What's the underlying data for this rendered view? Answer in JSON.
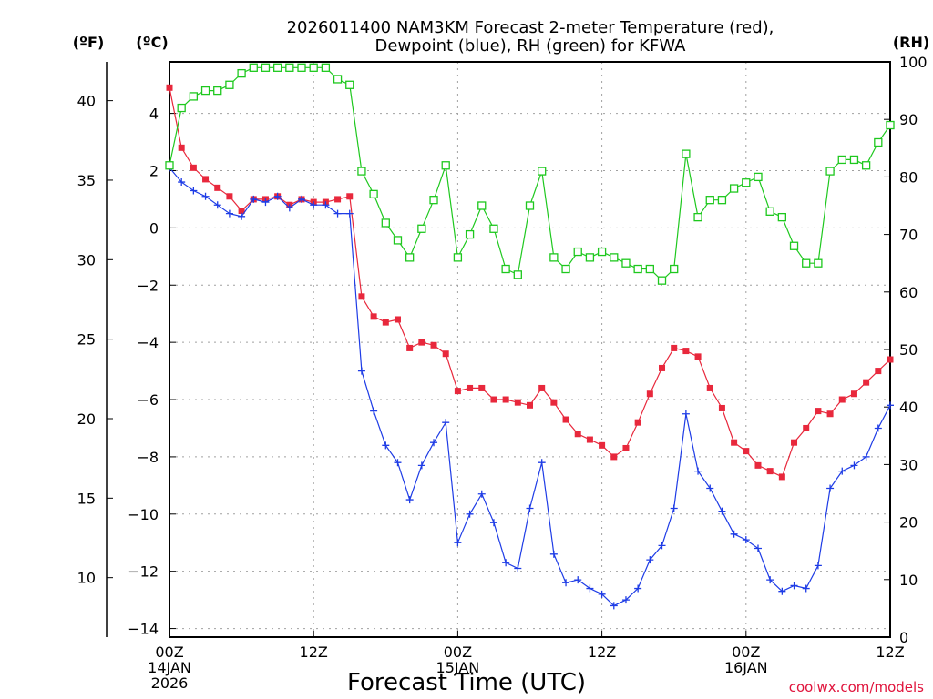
{
  "chart_data": {
    "type": "line",
    "title_line1": "2026011400 NAM3KM Forecast 2-meter Temperature (red),",
    "title_line2": "Dewpoint (blue), RH (green) for KFWA",
    "unit_left_f": "(ºF)",
    "unit_left_c": "(ºC)",
    "unit_right": "(RH)",
    "xlabel": "Forecast Time (UTC)",
    "credit": "coolwx.com/models",
    "x_hours": [
      0,
      1,
      2,
      3,
      4,
      5,
      6,
      7,
      8,
      9,
      10,
      11,
      12,
      13,
      14,
      15,
      16,
      17,
      18,
      19,
      20,
      21,
      22,
      23,
      24,
      25,
      26,
      27,
      28,
      29,
      30,
      31,
      32,
      33,
      34,
      35,
      36,
      37,
      38,
      39,
      40,
      41,
      42,
      43,
      44,
      45,
      46,
      47,
      48,
      49,
      50,
      51,
      52,
      53,
      54,
      55,
      56,
      57,
      58,
      59,
      60
    ],
    "xlim": [
      0,
      60
    ],
    "x_ticks": [
      {
        "hour": 0,
        "lines": [
          "00Z",
          "14JAN",
          "2026"
        ]
      },
      {
        "hour": 12,
        "lines": [
          "12Z"
        ]
      },
      {
        "hour": 24,
        "lines": [
          "00Z",
          "15JAN"
        ]
      },
      {
        "hour": 36,
        "lines": [
          "12Z"
        ]
      },
      {
        "hour": 48,
        "lines": [
          "00Z",
          "16JAN"
        ]
      },
      {
        "hour": 60,
        "lines": [
          "12Z"
        ]
      }
    ],
    "axis_c": {
      "label": "°C",
      "ylim": [
        -14.3,
        5.8
      ],
      "ticks": [
        4,
        2,
        0,
        -2,
        -4,
        -6,
        -8,
        -10,
        -12,
        -14
      ],
      "tick_labels": [
        "4",
        "2",
        "0",
        "−2",
        "−4",
        "−6",
        "−8",
        "−10",
        "−12",
        "−14"
      ]
    },
    "axis_f": {
      "label": "°F",
      "ticks": [
        40,
        35,
        30,
        25,
        20,
        15,
        10
      ],
      "tick_labels": [
        "40",
        "35",
        "30",
        "25",
        "20",
        "15",
        "10"
      ]
    },
    "axis_rh": {
      "label": "RH",
      "ylim": [
        0,
        100
      ],
      "ticks": [
        100,
        90,
        80,
        70,
        60,
        50,
        40,
        30,
        20,
        10,
        0
      ],
      "tick_labels": [
        "100",
        "90",
        "80",
        "70",
        "60",
        "50",
        "40",
        "30",
        "20",
        "10",
        "0"
      ]
    },
    "grid": true,
    "series": [
      {
        "name": "Temperature",
        "color": "#e8283c",
        "axis": "celsius",
        "marker": "filled-square",
        "values": [
          4.9,
          2.8,
          2.1,
          1.7,
          1.4,
          1.1,
          0.6,
          1.0,
          1.0,
          1.1,
          0.8,
          1.0,
          0.9,
          0.9,
          1.0,
          1.1,
          -2.4,
          -3.1,
          -3.3,
          -3.2,
          -4.2,
          -4.0,
          -4.1,
          -4.4,
          -5.7,
          -5.6,
          -5.6,
          -6.0,
          -6.0,
          -6.1,
          -6.2,
          -5.6,
          -6.1,
          -6.7,
          -7.2,
          -7.4,
          -7.6,
          -8.0,
          -7.7,
          -6.8,
          -5.8,
          -4.9,
          -4.2,
          -4.3,
          -4.5,
          -5.6,
          -6.3,
          -7.5,
          -7.8,
          -8.3,
          -8.5,
          -8.7,
          -7.5,
          -7.0,
          -6.4,
          -6.5,
          -6.0,
          -5.8,
          -5.4,
          -5.0,
          -4.6
        ]
      },
      {
        "name": "Dewpoint",
        "color": "#1e3ce6",
        "axis": "celsius",
        "marker": "plus",
        "values": [
          2.1,
          1.6,
          1.3,
          1.1,
          0.8,
          0.5,
          0.4,
          1.0,
          0.9,
          1.1,
          0.7,
          1.0,
          0.8,
          0.8,
          0.5,
          0.5,
          -5.0,
          -6.4,
          -7.6,
          -8.2,
          -9.5,
          -8.3,
          -7.5,
          -6.8,
          -11.0,
          -10.0,
          -9.3,
          -10.3,
          -11.7,
          -11.9,
          -9.8,
          -8.2,
          -11.4,
          -12.4,
          -12.3,
          -12.6,
          -12.8,
          -13.2,
          -13.0,
          -12.6,
          -11.6,
          -11.1,
          -9.8,
          -6.5,
          -8.5,
          -9.1,
          -9.9,
          -10.7,
          -10.9,
          -11.2,
          -12.3,
          -12.7,
          -12.5,
          -12.6,
          -11.8,
          -9.1,
          -8.5,
          -8.3,
          -8.0,
          -7.0,
          -6.2
        ]
      },
      {
        "name": "RH",
        "color": "#1ec81e",
        "axis": "rh",
        "marker": "open-square",
        "values": [
          82,
          92,
          94,
          95,
          95,
          96,
          98,
          99,
          99,
          99,
          99,
          99,
          99,
          99,
          97,
          96,
          81,
          77,
          72,
          69,
          66,
          71,
          76,
          82,
          66,
          70,
          75,
          71,
          64,
          63,
          75,
          81,
          66,
          64,
          67,
          66,
          67,
          66,
          65,
          64,
          64,
          62,
          64,
          84,
          73,
          76,
          76,
          78,
          79,
          80,
          74,
          73,
          68,
          65,
          65,
          81,
          83,
          83,
          82,
          86,
          89
        ]
      }
    ]
  }
}
